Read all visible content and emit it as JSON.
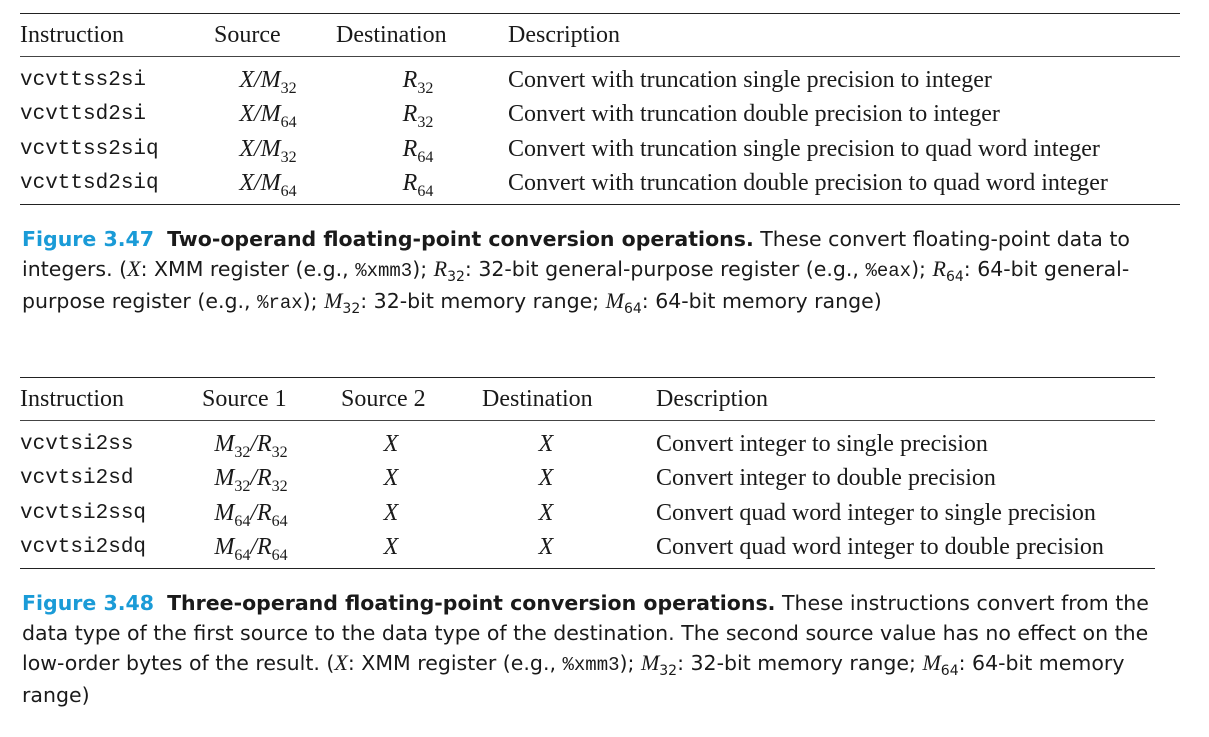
{
  "table1": {
    "headers": [
      "Instruction",
      "Source",
      "Destination",
      "Description"
    ],
    "rows": [
      {
        "instr": "vcvttss2si",
        "src_base": "X/M",
        "src_sub": "32",
        "dst_base": "R",
        "dst_sub": "32",
        "desc": "Convert with truncation single precision to integer"
      },
      {
        "instr": "vcvttsd2si",
        "src_base": "X/M",
        "src_sub": "64",
        "dst_base": "R",
        "dst_sub": "32",
        "desc": "Convert with truncation double precision to integer"
      },
      {
        "instr": "vcvttss2siq",
        "src_base": "X/M",
        "src_sub": "32",
        "dst_base": "R",
        "dst_sub": "64",
        "desc": "Convert with truncation single precision to quad word integer"
      },
      {
        "instr": "vcvttsd2siq",
        "src_base": "X/M",
        "src_sub": "64",
        "dst_base": "R",
        "dst_sub": "64",
        "desc": "Convert with truncation double precision to quad word integer"
      }
    ]
  },
  "caption1": {
    "fig": "Figure 3.47",
    "title": "Two-operand floating-point conversion operations.",
    "t1": " These convert floating-point data to integers. (",
    "X": "X",
    "t2": ": XMM register (e.g., ",
    "xmm3": "%xmm3",
    "t3": "); ",
    "R": "R",
    "sub32": "32",
    "t4": ": 32-bit general-purpose register (e.g., ",
    "eax": "%eax",
    "t5": "); ",
    "R2": "R",
    "sub64": "64",
    "t6": ": 64-bit general-purpose register (e.g., ",
    "rax": "%rax",
    "t7": "); ",
    "M": "M",
    "msub32": "32",
    "t8": ": 32-bit memory range; ",
    "M2": "M",
    "msub64": "64",
    "t9": ": 64-bit memory range)"
  },
  "table2": {
    "headers": [
      "Instruction",
      "Source 1",
      "Source 2",
      "Destination",
      "Description"
    ],
    "rows": [
      {
        "instr": "vcvtsi2ss",
        "s1a": "M",
        "s1a_sub": "32",
        "slash": "/",
        "s1b": "R",
        "s1b_sub": "32",
        "s2": "X",
        "dst": "X",
        "desc": "Convert integer to single precision"
      },
      {
        "instr": "vcvtsi2sd",
        "s1a": "M",
        "s1a_sub": "32",
        "slash": "/",
        "s1b": "R",
        "s1b_sub": "32",
        "s2": "X",
        "dst": "X",
        "desc": "Convert integer to double precision"
      },
      {
        "instr": "vcvtsi2ssq",
        "s1a": "M",
        "s1a_sub": "64",
        "slash": "/",
        "s1b": "R",
        "s1b_sub": "64",
        "s2": "X",
        "dst": "X",
        "desc": "Convert quad word integer to single precision"
      },
      {
        "instr": "vcvtsi2sdq",
        "s1a": "M",
        "s1a_sub": "64",
        "slash": "/",
        "s1b": "R",
        "s1b_sub": "64",
        "s2": "X",
        "dst": "X",
        "desc": "Convert quad word integer to double precision"
      }
    ]
  },
  "caption2": {
    "fig": "Figure 3.48",
    "title": "Three-operand floating-point conversion operations.",
    "t1": " These instructions convert from the data type of the first source to the data type of the destination. The second source value has no effect on the low-order bytes of the result. (",
    "X": "X",
    "t2": ": XMM register (e.g., ",
    "xmm3": "%xmm3",
    "t3": "); ",
    "M": "M",
    "msub32": "32",
    "t4": ": 32-bit memory range; ",
    "M2": "M",
    "msub64": "64",
    "t5": ": 64-bit memory range)"
  },
  "colors": {
    "figure_label": "#1a9bd7",
    "text": "#1a1a1a",
    "rule": "#222222"
  }
}
